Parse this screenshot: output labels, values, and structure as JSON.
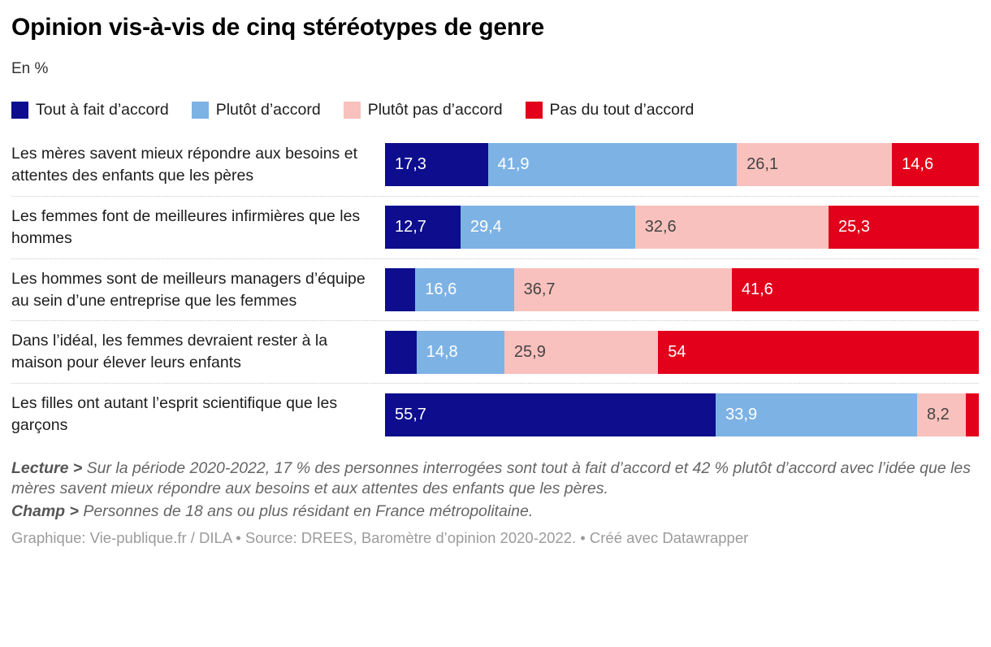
{
  "title": "Opinion vis-à-vis de cinq stéréotypes de genre",
  "subtitle": "En %",
  "colors": {
    "series": [
      "#0d0d8d",
      "#7db2e5",
      "#f9c1bd",
      "#e2001a"
    ],
    "segment_text": [
      "#ffffff",
      "#ffffff",
      "#444444",
      "#ffffff"
    ]
  },
  "legend": [
    {
      "label": "Tout à fait d’accord",
      "color": "#0d0d8d"
    },
    {
      "label": "Plutôt d’accord",
      "color": "#7db2e5"
    },
    {
      "label": "Plutôt pas d’accord",
      "color": "#f9c1bd"
    },
    {
      "label": "Pas du tout d’accord",
      "color": "#e2001a"
    }
  ],
  "chart_data": {
    "type": "bar",
    "orientation": "horizontal",
    "stacked": true,
    "unit": "%",
    "title": "Opinion vis-à-vis de cinq stéréotypes de genre",
    "subtitle": "En %",
    "legend_position": "top",
    "axis_range": [
      0,
      100
    ],
    "grid": false,
    "categories": [
      "Les mères savent mieux répondre aux besoins et attentes des enfants que les pères",
      "Les femmes font de meilleures infirmières que les hommes",
      "Les hommes sont de meilleurs managers d’équipe au sein d’une entreprise que les femmes",
      "Dans l’idéal, les femmes devraient rester à la maison pour élever leurs enfants",
      "Les filles ont autant l’esprit scientifique que les garçons"
    ],
    "series": [
      {
        "name": "Tout à fait d’accord",
        "color": "#0d0d8d",
        "values": [
          17.3,
          12.7,
          5.1,
          5.3,
          55.7
        ]
      },
      {
        "name": "Plutôt d’accord",
        "color": "#7db2e5",
        "values": [
          41.9,
          29.4,
          16.6,
          14.8,
          33.9
        ]
      },
      {
        "name": "Plutôt pas d’accord",
        "color": "#f9c1bd",
        "values": [
          26.1,
          32.6,
          36.7,
          25.9,
          8.2
        ]
      },
      {
        "name": "Pas du tout d’accord",
        "color": "#e2001a",
        "values": [
          14.6,
          25.3,
          41.6,
          54,
          2.2
        ]
      }
    ]
  },
  "rows": [
    {
      "label": "Les mères savent mieux répondre aux besoins et attentes des enfants que les pères",
      "segments": [
        {
          "value": 17.3,
          "display": "17,3"
        },
        {
          "value": 41.9,
          "display": "41,9"
        },
        {
          "value": 26.1,
          "display": "26,1"
        },
        {
          "value": 14.6,
          "display": "14,6"
        }
      ]
    },
    {
      "label": "Les femmes font de meilleures infirmières que les hommes",
      "segments": [
        {
          "value": 12.7,
          "display": "12,7"
        },
        {
          "value": 29.4,
          "display": "29,4"
        },
        {
          "value": 32.6,
          "display": "32,6"
        },
        {
          "value": 25.3,
          "display": "25,3"
        }
      ]
    },
    {
      "label": "Les hommes sont de meilleurs managers d’équipe au sein d’une entreprise que les femmes",
      "segments": [
        {
          "value": 5.1,
          "display": ""
        },
        {
          "value": 16.6,
          "display": "16,6"
        },
        {
          "value": 36.7,
          "display": "36,7"
        },
        {
          "value": 41.6,
          "display": "41,6"
        }
      ]
    },
    {
      "label": "Dans l’idéal, les femmes devraient rester à la maison pour élever leurs enfants",
      "segments": [
        {
          "value": 5.3,
          "display": ""
        },
        {
          "value": 14.8,
          "display": "14,8"
        },
        {
          "value": 25.9,
          "display": "25,9"
        },
        {
          "value": 54,
          "display": "54"
        }
      ]
    },
    {
      "label": "Les filles ont autant l’esprit scientifique que les garçons",
      "segments": [
        {
          "value": 55.7,
          "display": "55,7"
        },
        {
          "value": 33.9,
          "display": "33,9"
        },
        {
          "value": 8.2,
          "display": "8,2"
        },
        {
          "value": 2.2,
          "display": ""
        }
      ]
    }
  ],
  "notes": {
    "lecture_label": "Lecture >",
    "lecture_text": "Sur la période 2020-2022, 17 % des personnes interrogées sont tout à fait d’accord et 42 % plutôt d’accord avec l’idée que les mères savent mieux répondre aux besoins et aux attentes des enfants que les pères.",
    "champ_label": "Champ >",
    "champ_text": "Personnes de 18 ans ou plus résidant en France métropolitaine."
  },
  "attribution": "Graphique: Vie-publique.fr / DILA • Source: DREES, Baromètre d’opinion 2020-2022.  • Créé avec Datawrapper"
}
